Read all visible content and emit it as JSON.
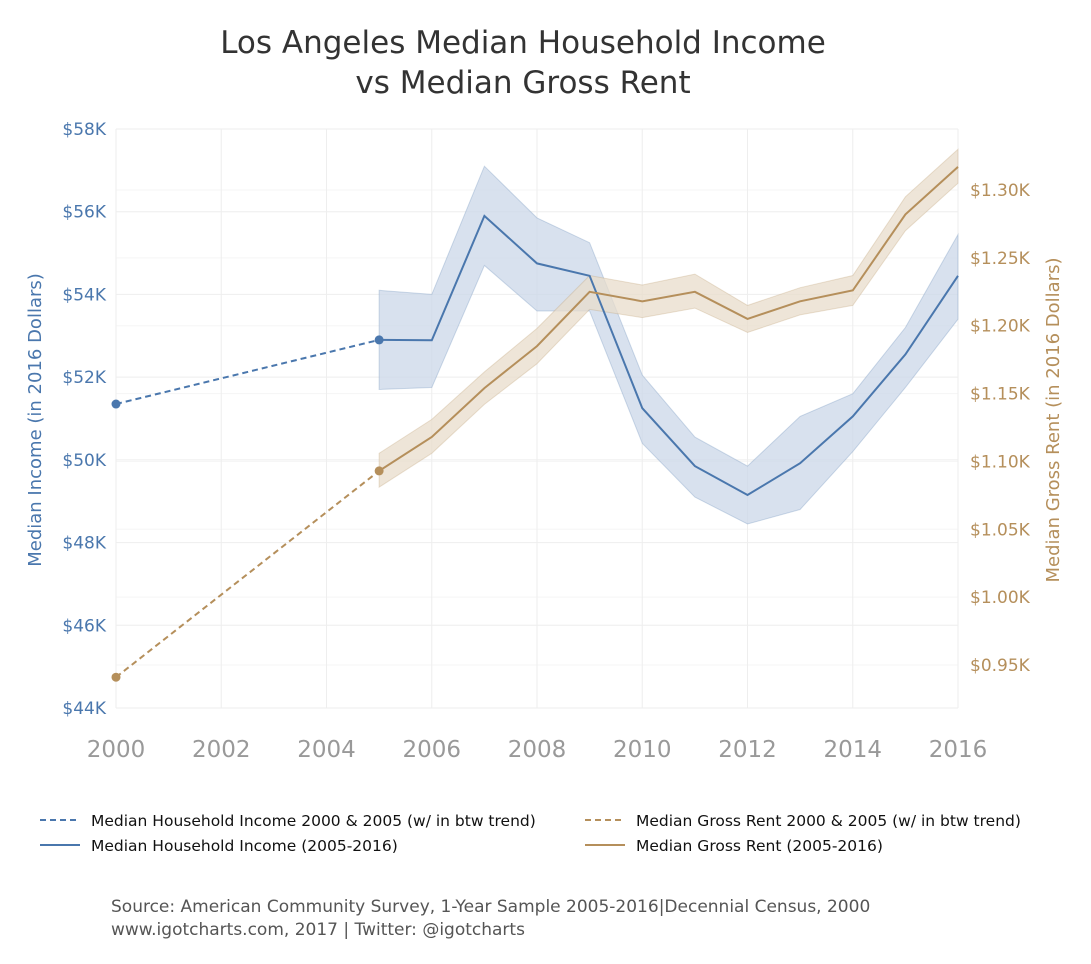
{
  "colors": {
    "income": "#4a77ad",
    "rent": "#b58f5b",
    "income_band": "#cbd7e8",
    "rent_band": "#e8dccb",
    "grid": "#eeeeee"
  },
  "chart_data": {
    "type": "line",
    "title_line1": "Los Angeles Median Household Income",
    "title_line2": "vs Median Gross Rent",
    "ylabel_left": "Median Income (in 2016 Dollars)",
    "ylabel_right": "Median Gross Rent (in 2016 Dollars)",
    "xlim": [
      2000,
      2016
    ],
    "ylim_left": [
      44000,
      58000
    ],
    "ylim_right": [
      905,
      1335
    ],
    "x_ticks": [
      "2000",
      "2002",
      "2004",
      "2006",
      "2008",
      "2010",
      "2012",
      "2014",
      "2016"
    ],
    "x_tick_values": [
      2000,
      2002,
      2004,
      2006,
      2008,
      2010,
      2012,
      2014,
      2016
    ],
    "y_left_ticks": [
      "$44K",
      "$46K",
      "$48K",
      "$50K",
      "$52K",
      "$54K",
      "$56K",
      "$58K"
    ],
    "y_left_tick_values": [
      44000,
      46000,
      48000,
      50000,
      52000,
      54000,
      56000,
      58000
    ],
    "y_right_ticks": [
      "$0.95K",
      "$1.00K",
      "$1.05K",
      "$1.10K",
      "$1.15K",
      "$1.20K",
      "$1.25K",
      "$1.30K"
    ],
    "y_right_tick_values": [
      950,
      1000,
      1050,
      1100,
      1150,
      1200,
      1250,
      1300
    ],
    "grid": true,
    "series": [
      {
        "name": "Median Household Income 2000 & 2005 (w/ in btw trend)",
        "axis": "left",
        "style": "dashed",
        "color_key": "income",
        "x": [
          2000,
          2005
        ],
        "y": [
          51350,
          52900
        ]
      },
      {
        "name": "Median Household Income (2005-2016)",
        "axis": "left",
        "style": "solid",
        "color_key": "income",
        "x": [
          2005,
          2006,
          2007,
          2008,
          2009,
          2010,
          2011,
          2012,
          2013,
          2014,
          2015,
          2016
        ],
        "y": [
          52900,
          52890,
          55900,
          54750,
          54450,
          51250,
          49850,
          49150,
          49920,
          51050,
          52550,
          54450
        ],
        "lower": [
          51700,
          51750,
          54700,
          53600,
          53600,
          50400,
          49100,
          48450,
          48800,
          50200,
          51750,
          53400
        ],
        "upper": [
          54100,
          54000,
          57100,
          55850,
          55250,
          52050,
          50550,
          49850,
          51050,
          51600,
          53200,
          55450
        ]
      },
      {
        "name": "Median Gross Rent 2000 & 2005 (w/ in btw trend)",
        "axis": "right",
        "style": "dashed",
        "color_key": "rent",
        "x": [
          2000,
          2005
        ],
        "y": [
          941,
          1093
        ]
      },
      {
        "name": "Median Gross Rent (2005-2016)",
        "axis": "right",
        "style": "solid",
        "color_key": "rent",
        "x": [
          2005,
          2006,
          2007,
          2008,
          2009,
          2010,
          2011,
          2012,
          2013,
          2014,
          2015,
          2016
        ],
        "y": [
          1093,
          1118,
          1154,
          1185,
          1225,
          1218,
          1225,
          1205,
          1218,
          1226,
          1282,
          1317
        ],
        "lower": [
          1081,
          1106,
          1142,
          1172,
          1212,
          1206,
          1213,
          1195,
          1208,
          1215,
          1270,
          1305
        ],
        "upper": [
          1106,
          1131,
          1166,
          1198,
          1237,
          1230,
          1238,
          1215,
          1228,
          1237,
          1295,
          1330
        ]
      }
    ],
    "legend_position": "bottom"
  },
  "source_line1": "Source: American Community Survey, 1-Year Sample 2005-2016|Decennial Census, 2000",
  "source_line2": "www.igotcharts.com, 2017 | Twitter: @igotcharts"
}
